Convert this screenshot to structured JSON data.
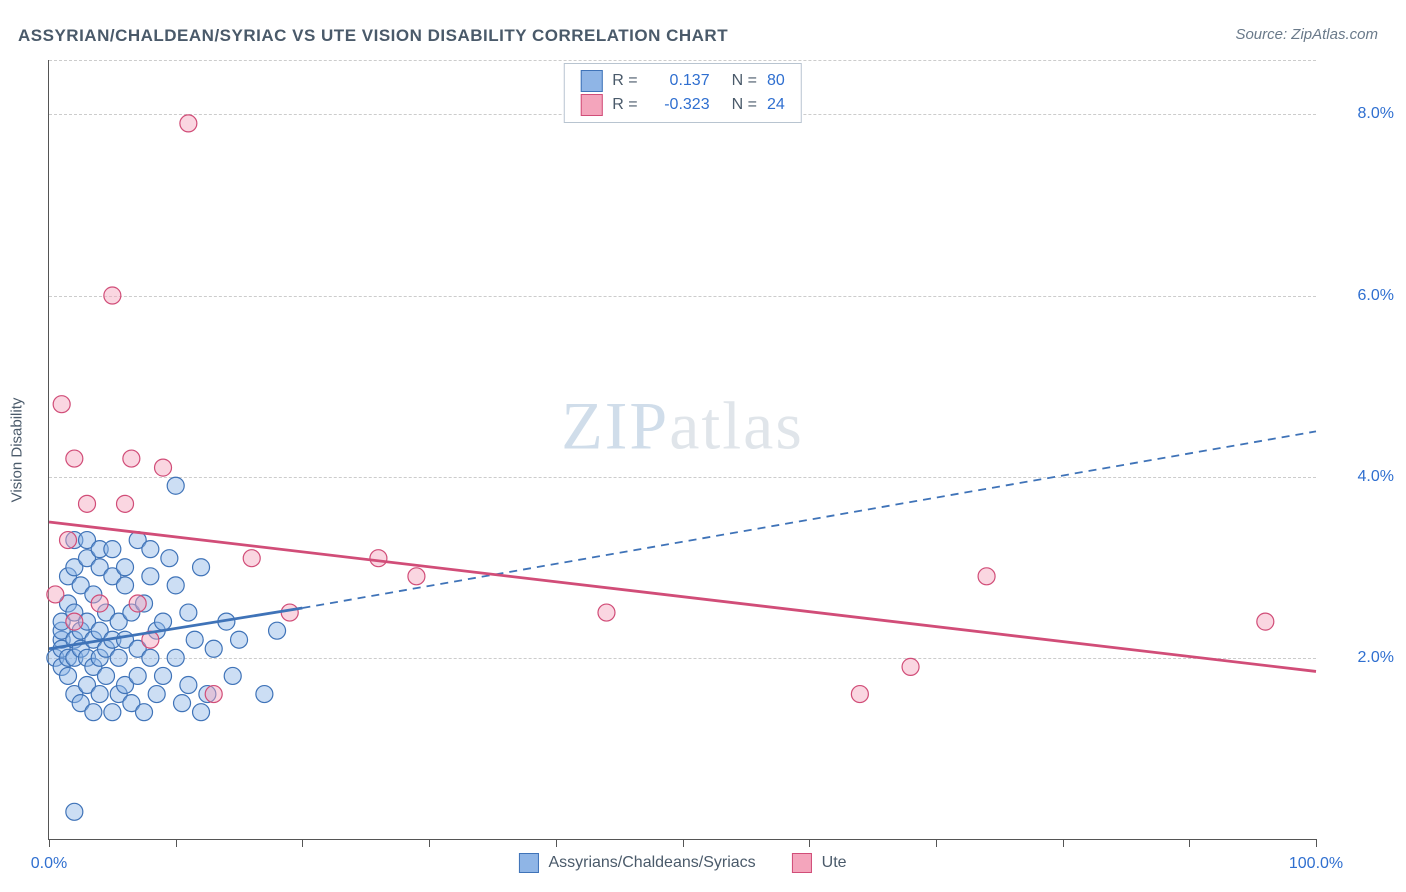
{
  "title": "ASSYRIAN/CHALDEAN/SYRIAC VS UTE VISION DISABILITY CORRELATION CHART",
  "source_label": "Source: ZipAtlas.com",
  "y_axis_title": "Vision Disability",
  "watermark_a": "ZIP",
  "watermark_b": "atlas",
  "chart": {
    "type": "scatter",
    "background_color": "#ffffff",
    "grid_color": "#cccccc",
    "axis_color": "#555555",
    "text_color": "#4a5a6a",
    "value_color": "#2f6fd0",
    "xlim": [
      0,
      100
    ],
    "ylim": [
      0,
      8.6
    ],
    "y_ticks": [
      {
        "value": 2.0,
        "label": "2.0%"
      },
      {
        "value": 4.0,
        "label": "4.0%"
      },
      {
        "value": 6.0,
        "label": "6.0%"
      },
      {
        "value": 8.0,
        "label": "8.0%"
      }
    ],
    "x_ticks": [
      0,
      10,
      20,
      30,
      40,
      50,
      60,
      70,
      80,
      90,
      100
    ],
    "x_labels": [
      {
        "value": 0,
        "label": "0.0%"
      },
      {
        "value": 100,
        "label": "100.0%"
      }
    ],
    "point_radius": 8.5,
    "series": [
      {
        "name": "Assyrians/Chaldeans/Syriacs",
        "color": "#5a91d8",
        "fill": "#8fb5e6",
        "stroke": "#3f73b8",
        "r_value": "0.137",
        "n_value": "80",
        "trend_solid": {
          "x1": 0,
          "y1": 2.1,
          "x2": 20,
          "y2": 2.55
        },
        "trend_dash": {
          "x1": 20,
          "y1": 2.55,
          "x2": 100,
          "y2": 4.5
        },
        "points": [
          [
            0.5,
            2.0
          ],
          [
            1,
            2.2
          ],
          [
            1,
            2.1
          ],
          [
            1,
            2.3
          ],
          [
            1,
            1.9
          ],
          [
            1,
            2.4
          ],
          [
            1.5,
            2.0
          ],
          [
            1.5,
            2.6
          ],
          [
            1.5,
            1.8
          ],
          [
            1.5,
            2.9
          ],
          [
            2,
            2.2
          ],
          [
            2,
            2.0
          ],
          [
            2,
            1.6
          ],
          [
            2,
            2.5
          ],
          [
            2,
            3.0
          ],
          [
            2,
            3.3
          ],
          [
            2.5,
            2.1
          ],
          [
            2.5,
            2.3
          ],
          [
            2.5,
            1.5
          ],
          [
            2.5,
            2.8
          ],
          [
            3,
            2.0
          ],
          [
            3,
            2.4
          ],
          [
            3,
            1.7
          ],
          [
            3,
            3.1
          ],
          [
            3,
            3.3
          ],
          [
            3.5,
            2.2
          ],
          [
            3.5,
            1.9
          ],
          [
            3.5,
            2.7
          ],
          [
            3.5,
            1.4
          ],
          [
            4,
            2.0
          ],
          [
            4,
            2.3
          ],
          [
            4,
            3.0
          ],
          [
            4,
            1.6
          ],
          [
            4,
            3.2
          ],
          [
            4.5,
            2.1
          ],
          [
            4.5,
            2.5
          ],
          [
            4.5,
            1.8
          ],
          [
            5,
            2.2
          ],
          [
            5,
            1.4
          ],
          [
            5,
            2.9
          ],
          [
            5,
            3.2
          ],
          [
            5.5,
            2.0
          ],
          [
            5.5,
            1.6
          ],
          [
            5.5,
            2.4
          ],
          [
            6,
            2.8
          ],
          [
            6,
            1.7
          ],
          [
            6,
            3.0
          ],
          [
            6,
            2.2
          ],
          [
            6.5,
            1.5
          ],
          [
            6.5,
            2.5
          ],
          [
            7,
            3.3
          ],
          [
            7,
            1.8
          ],
          [
            7,
            2.1
          ],
          [
            7.5,
            2.6
          ],
          [
            7.5,
            1.4
          ],
          [
            8,
            2.0
          ],
          [
            8,
            3.2
          ],
          [
            8,
            2.9
          ],
          [
            8.5,
            1.6
          ],
          [
            8.5,
            2.3
          ],
          [
            9,
            2.4
          ],
          [
            9,
            1.8
          ],
          [
            9.5,
            3.1
          ],
          [
            10,
            2.8
          ],
          [
            10,
            3.9
          ],
          [
            10,
            2.0
          ],
          [
            10.5,
            1.5
          ],
          [
            11,
            2.5
          ],
          [
            11,
            1.7
          ],
          [
            11.5,
            2.2
          ],
          [
            12,
            1.4
          ],
          [
            12,
            3.0
          ],
          [
            12.5,
            1.6
          ],
          [
            13,
            2.1
          ],
          [
            14,
            2.4
          ],
          [
            14.5,
            1.8
          ],
          [
            15,
            2.2
          ],
          [
            17,
            1.6
          ],
          [
            18,
            2.3
          ],
          [
            2,
            0.3
          ]
        ]
      },
      {
        "name": "Ute",
        "color": "#e06a8f",
        "fill": "#f4a5bc",
        "stroke": "#d14d78",
        "r_value": "-0.323",
        "n_value": "24",
        "trend_solid": {
          "x1": 0,
          "y1": 3.5,
          "x2": 100,
          "y2": 1.85
        },
        "trend_dash": null,
        "points": [
          [
            0.5,
            2.7
          ],
          [
            1,
            4.8
          ],
          [
            1.5,
            3.3
          ],
          [
            2,
            4.2
          ],
          [
            2,
            2.4
          ],
          [
            3,
            3.7
          ],
          [
            4,
            2.6
          ],
          [
            5,
            6.0
          ],
          [
            6,
            3.7
          ],
          [
            6.5,
            4.2
          ],
          [
            7,
            2.6
          ],
          [
            8,
            2.2
          ],
          [
            9,
            4.1
          ],
          [
            11,
            7.9
          ],
          [
            13,
            1.6
          ],
          [
            16,
            3.1
          ],
          [
            19,
            2.5
          ],
          [
            26,
            3.1
          ],
          [
            29,
            2.9
          ],
          [
            44,
            2.5
          ],
          [
            64,
            1.6
          ],
          [
            68,
            1.9
          ],
          [
            74,
            2.9
          ],
          [
            96,
            2.4
          ]
        ]
      }
    ],
    "bottom_legend": [
      {
        "label": "Assyrians/Chaldeans/Syriacs",
        "fill": "#8fb5e6",
        "stroke": "#3f73b8"
      },
      {
        "label": "Ute",
        "fill": "#f4a5bc",
        "stroke": "#d14d78"
      }
    ]
  }
}
